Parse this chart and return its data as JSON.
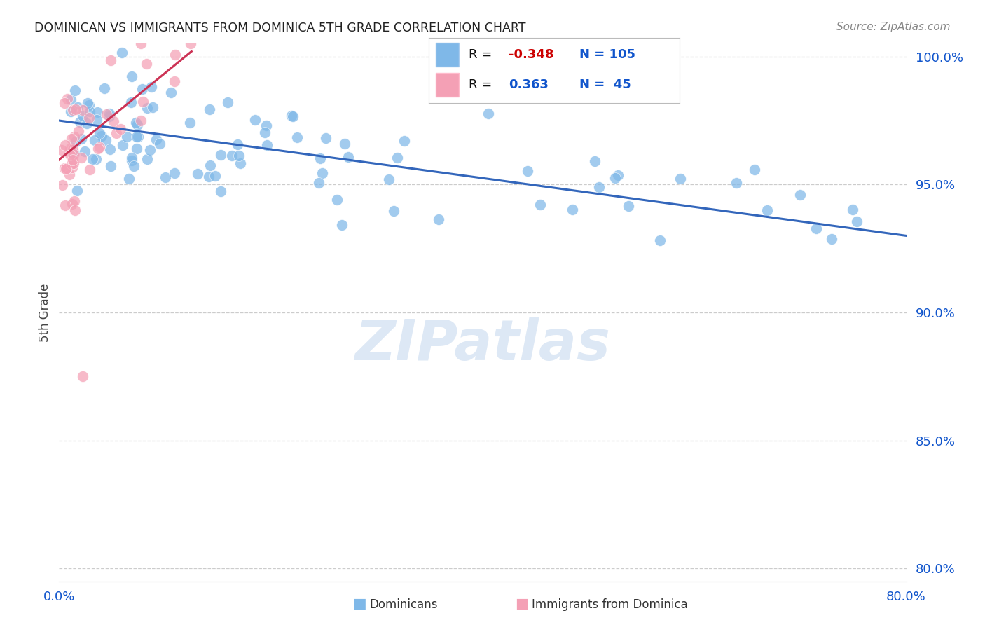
{
  "title": "DOMINICAN VS IMMIGRANTS FROM DOMINICA 5TH GRADE CORRELATION CHART",
  "source": "Source: ZipAtlas.com",
  "ylabel": "5th Grade",
  "watermark": "ZIPatlas",
  "xlim": [
    0.0,
    0.8
  ],
  "ylim": [
    0.795,
    1.005
  ],
  "yticks": [
    0.8,
    0.85,
    0.9,
    0.95,
    1.0
  ],
  "ytick_labels": [
    "80.0%",
    "85.0%",
    "90.0%",
    "95.0%",
    "100.0%"
  ],
  "xtick_positions": [
    0.0,
    0.1,
    0.2,
    0.3,
    0.4,
    0.5,
    0.6,
    0.7,
    0.8
  ],
  "xtick_labels": [
    "0.0%",
    "",
    "",
    "",
    "",
    "",
    "",
    "",
    "80.0%"
  ],
  "blue_color": "#7fb8e8",
  "pink_color": "#f4a0b5",
  "blue_line_color": "#3366bb",
  "pink_line_color": "#cc3355",
  "legend_R_blue": "-0.348",
  "legend_N_blue": "105",
  "legend_R_pink": "0.363",
  "legend_N_pink": "45",
  "blue_line_x": [
    0.0,
    0.8
  ],
  "blue_line_y": [
    0.975,
    0.93
  ],
  "pink_line_x": [
    -0.005,
    0.125
  ],
  "pink_line_y": [
    0.958,
    1.002
  ],
  "background_color": "#ffffff",
  "grid_color": "#cccccc",
  "title_color": "#222222",
  "axis_label_color": "#1155cc",
  "watermark_color": "#dde8f5"
}
